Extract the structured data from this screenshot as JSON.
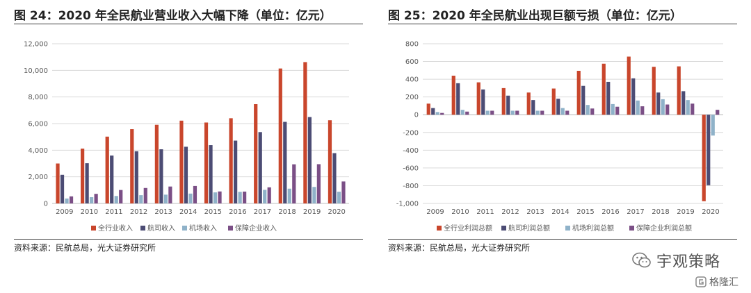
{
  "colors": {
    "s1": "#C9462C",
    "s2": "#4C4C74",
    "s3": "#8FB2C9",
    "s4": "#7B4F86",
    "axis": "#bfbfbf",
    "text": "#595959"
  },
  "charts": [
    {
      "title": "图 24：2020 年全民航业营业收入大幅下降（单位：亿元）",
      "source": "资料来源：民航总局，光大证券研究所"
    },
    {
      "title": "图 25：2020 年全民航业出现巨额亏损（单位：亿元）",
      "source": "资料来源：民航总局，光大证券研究所"
    }
  ],
  "chart_data": [
    {
      "type": "bar",
      "title": "图 24：2020 年全民航业营业收入大幅下降（单位：亿元）",
      "categories": [
        "2009",
        "2010",
        "2011",
        "2012",
        "2013",
        "2014",
        "2015",
        "2016",
        "2017",
        "2018",
        "2019",
        "2020"
      ],
      "ylim": [
        0,
        12000
      ],
      "yticks": [
        0,
        2000,
        4000,
        6000,
        8000,
        10000,
        12000
      ],
      "ytick_labels": [
        "0",
        "2,000",
        "4,000",
        "6,000",
        "8,000",
        "10,000",
        "12,000"
      ],
      "grid": true,
      "legend": "bottom",
      "series": [
        {
          "name": "全行业收入",
          "values": [
            3000,
            4120,
            5020,
            5580,
            5910,
            6220,
            6080,
            6400,
            7460,
            10140,
            10620,
            6250
          ]
        },
        {
          "name": "航司收入",
          "values": [
            2150,
            3020,
            3600,
            3920,
            4070,
            4260,
            4380,
            4720,
            5360,
            6130,
            6490,
            3780
          ]
        },
        {
          "name": "机场收入",
          "values": [
            370,
            470,
            560,
            620,
            660,
            740,
            830,
            870,
            1020,
            1110,
            1240,
            880
          ]
        },
        {
          "name": "保障企业收入",
          "values": [
            530,
            720,
            1010,
            1160,
            1270,
            1310,
            900,
            890,
            1210,
            2940,
            2950,
            1650
          ]
        }
      ]
    },
    {
      "type": "bar",
      "title": "图 25：2020 年全民航业出现巨额亏损（单位：亿元）",
      "categories": [
        "2009",
        "2010",
        "2011",
        "2012",
        "2013",
        "2014",
        "2015",
        "2016",
        "2017",
        "2018",
        "2019",
        "2020"
      ],
      "ylim": [
        -1000,
        800
      ],
      "yticks": [
        -1000,
        -800,
        -600,
        -400,
        -200,
        0,
        200,
        400,
        600,
        800
      ],
      "ytick_labels": [
        "-1,000",
        "-800",
        "-600",
        "-400",
        "-200",
        "0",
        "200",
        "400",
        "600",
        "800"
      ],
      "grid": true,
      "legend": "bottom",
      "series": [
        {
          "name": "全行业利润总额",
          "values": [
            125,
            440,
            365,
            300,
            250,
            295,
            495,
            575,
            655,
            540,
            545,
            -975
          ]
        },
        {
          "name": "航司利润总额",
          "values": [
            75,
            355,
            285,
            215,
            165,
            180,
            325,
            370,
            410,
            250,
            265,
            -795
          ]
        },
        {
          "name": "机场利润总额",
          "values": [
            30,
            55,
            45,
            45,
            45,
            75,
            110,
            120,
            160,
            175,
            165,
            -235
          ]
        },
        {
          "name": "保障企业利润总额",
          "values": [
            20,
            35,
            45,
            45,
            45,
            45,
            70,
            90,
            95,
            115,
            125,
            55
          ]
        }
      ]
    }
  ],
  "watermark": {
    "brand": "宇观策略",
    "sub": "格隆汇"
  }
}
